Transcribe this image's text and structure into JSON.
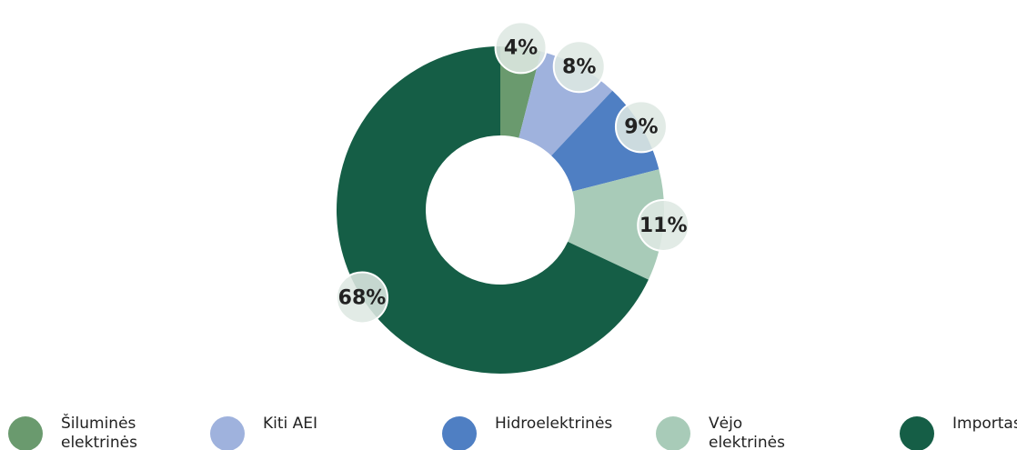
{
  "chart_data": {
    "type": "donut",
    "categories": [
      "Šiluminės elektrinės",
      "Kiti AEI",
      "Hidroelektrinės",
      "Vėjo elektrinės",
      "Importas"
    ],
    "values": [
      4,
      8,
      9,
      11,
      68
    ],
    "value_labels": [
      "4%",
      "8%",
      "9%",
      "11%",
      "68%"
    ],
    "colors": [
      "#6a9a6e",
      "#9fb2dd",
      "#4f7fc3",
      "#a8cbb8",
      "#155e46"
    ],
    "legend": "bottom"
  }
}
